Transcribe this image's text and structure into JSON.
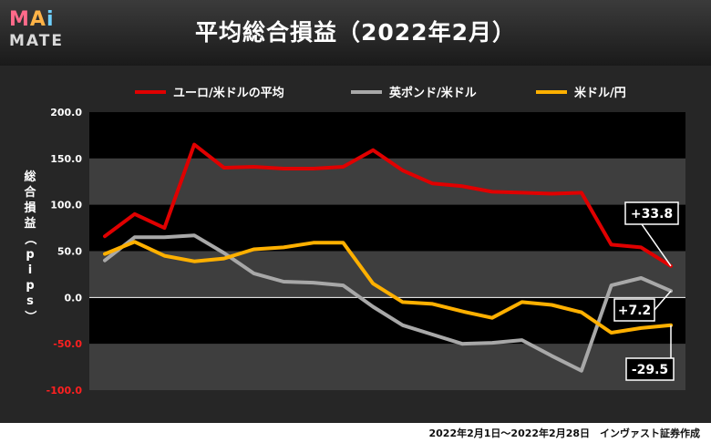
{
  "logo": {
    "m": "M",
    "a": "A",
    "i": "i",
    "mate": "MATE"
  },
  "footer": "2022年2月1日～2022年2月28日　インヴァスト証券作成",
  "colors": {
    "eurusd": "#e00000",
    "gbpusd": "#a8a8a8",
    "usdjpy": "#ffb000"
  },
  "chart_data": {
    "type": "line",
    "title": "平均総合損益（2022年2月）",
    "ylabel": "総合損益（pips）",
    "ylim": [
      -100,
      200
    ],
    "yticks": [
      "200.0",
      "150.0",
      "100.0",
      "50.0",
      "0.0",
      "-50.0",
      "-100.0"
    ],
    "series": [
      {
        "name": "ユーロ/米ドルの平均",
        "values": [
          66,
          90,
          75,
          165,
          140,
          141,
          139,
          139,
          141,
          159,
          137,
          123,
          120,
          114,
          113,
          112,
          113,
          57,
          54,
          34
        ],
        "end_label": "+33.8"
      },
      {
        "name": "英ポンド/米ドル",
        "values": [
          40,
          65,
          65,
          67,
          48,
          26,
          17,
          16,
          13,
          -10,
          -30,
          -40,
          -50,
          -49,
          -46,
          -63,
          -79,
          13,
          21,
          7
        ],
        "end_label": "+7.2"
      },
      {
        "name": "米ドル/円",
        "values": [
          47,
          60,
          45,
          39,
          42,
          52,
          54,
          59,
          59,
          15,
          -5,
          -7,
          -15,
          -22,
          -5,
          -8,
          -16,
          -38,
          -33,
          -30
        ],
        "end_label": "-29.5"
      }
    ]
  }
}
